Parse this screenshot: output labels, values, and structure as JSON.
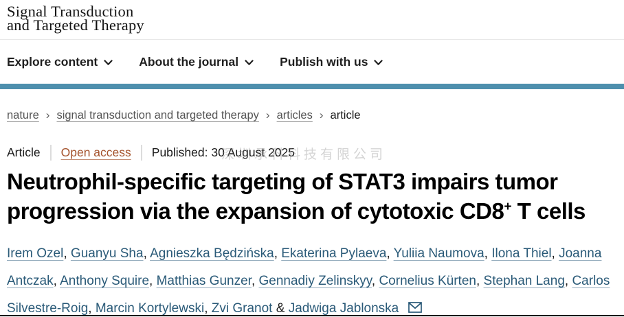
{
  "journal": {
    "title_line1": "Signal Transduction",
    "title_line2": "and Targeted Therapy"
  },
  "nav": {
    "items": [
      {
        "label": "Explore content"
      },
      {
        "label": "About the journal"
      },
      {
        "label": "Publish with us"
      }
    ]
  },
  "breadcrumb": {
    "separator": "›",
    "items": [
      "nature",
      "signal transduction and targeted therapy",
      "articles",
      "article"
    ]
  },
  "article_meta": {
    "type_label": "Article",
    "access_label": "Open access",
    "published_text": "Published: 30 August 2025",
    "watermark": "深圳承科科技有限公司"
  },
  "article": {
    "title_line1": "Neutrophil-specific targeting of STAT3 impairs tumor",
    "title_line2_pre": "progression via the expansion of cytotoxic CD8",
    "title_line2_sup": "+",
    "title_line2_post": " T cells",
    "authors": [
      "Irem Ozel",
      "Guanyu Sha",
      "Agnieszka Będzińska",
      "Ekaterina Pylaeva",
      "Yuliia Naumova",
      "Ilona Thiel",
      "Joanna Antczak",
      "Anthony Squire",
      "Matthias Gunzer",
      "Gennadiy Zelinskyy",
      "Cornelius Kürten",
      "Stephan Lang",
      "Carlos Silvestre-Roig",
      "Marcin Kortylewski",
      "Zvi Granot",
      "Jadwiga Jablonska"
    ],
    "author_separator": ", ",
    "author_last_separator": " & ",
    "corresponding_author": "Jadwiga Jablonska"
  },
  "colors": {
    "accent_bar": "#4e8fad",
    "open_access": "#a5542e",
    "author_link": "#2a5a78"
  }
}
